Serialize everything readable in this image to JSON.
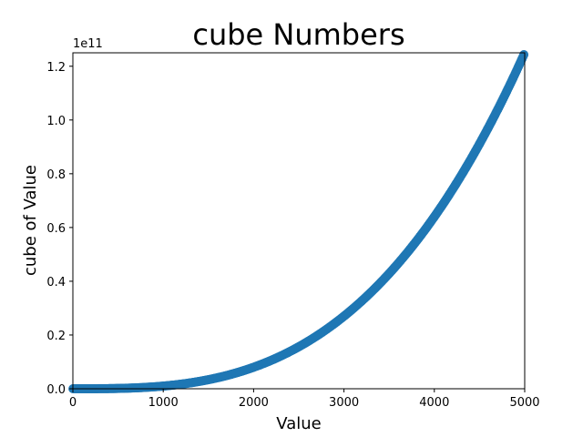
{
  "chart_data": {
    "type": "scatter",
    "title": "cube Numbers",
    "xlabel": "Value",
    "ylabel": "cube of Value",
    "xlim": [
      0,
      5000
    ],
    "ylim": [
      0,
      125000000000
    ],
    "x_ticks": [
      0,
      1000,
      2000,
      3000,
      4000,
      5000
    ],
    "x_tick_labels": [
      "0",
      "1000",
      "2000",
      "3000",
      "4000",
      "5000"
    ],
    "y_ticks": [
      0,
      20000000000,
      40000000000,
      60000000000,
      80000000000,
      100000000000,
      120000000000
    ],
    "y_tick_labels": [
      "0.0",
      "0.2",
      "0.4",
      "0.6",
      "0.8",
      "1.0",
      "1.2"
    ],
    "y_offset_label": "1e11",
    "grid": false,
    "legend": "none",
    "series": [
      {
        "function": "y = x^3",
        "x_range": [
          1,
          5000
        ],
        "color": "#1f77b4"
      }
    ]
  }
}
